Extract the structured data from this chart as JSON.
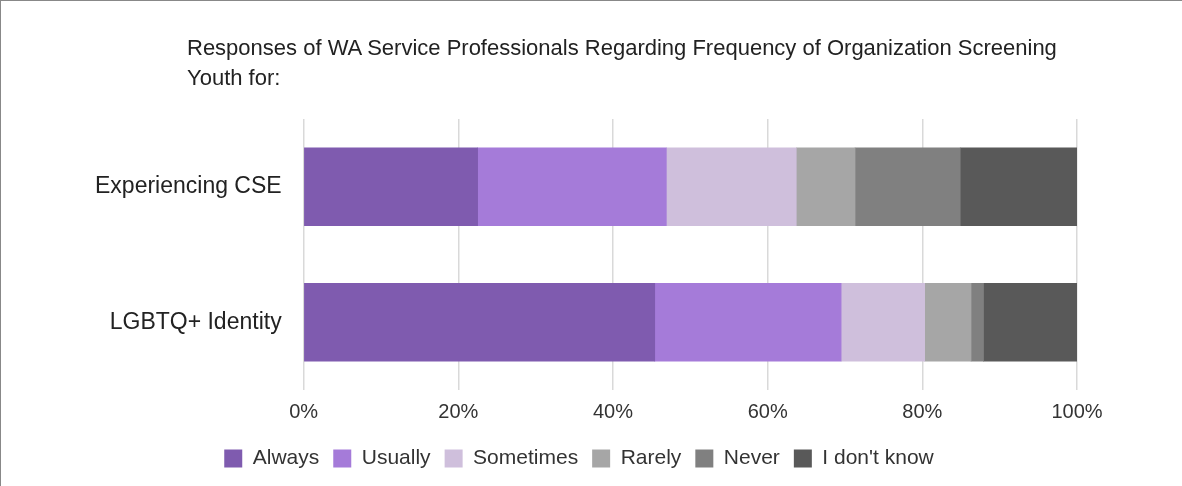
{
  "chart_data": {
    "type": "bar",
    "orientation": "horizontal",
    "stacked": true,
    "title": "Responses of WA Service Professionals Regarding Frequency of Organization Screening Youth for:",
    "categories": [
      "Experiencing CSE",
      "LGBTQ+ Identity"
    ],
    "series": [
      {
        "name": "Always",
        "color": "#7f5baf",
        "values": [
          22.5,
          45.4
        ]
      },
      {
        "name": "Usually",
        "color": "#a57bd9",
        "values": [
          24.4,
          24.1
        ]
      },
      {
        "name": "Sometimes",
        "color": "#cfbfdc",
        "values": [
          16.8,
          10.8
        ]
      },
      {
        "name": "Rarely",
        "color": "#a6a6a6",
        "values": [
          7.6,
          6.0
        ]
      },
      {
        "name": "Never",
        "color": "#808080",
        "values": [
          13.6,
          1.6
        ]
      },
      {
        "name": "I don't know",
        "color": "#595959",
        "values": [
          15.1,
          12.1
        ]
      }
    ],
    "xlim": [
      0,
      100
    ],
    "xticks": [
      {
        "value": 0,
        "label": "0%"
      },
      {
        "value": 20,
        "label": "20%"
      },
      {
        "value": 40,
        "label": "40%"
      },
      {
        "value": 60,
        "label": "60%"
      },
      {
        "value": 80,
        "label": "80%"
      },
      {
        "value": 100,
        "label": "100%"
      }
    ],
    "grid": "x",
    "legend": "bottom"
  }
}
